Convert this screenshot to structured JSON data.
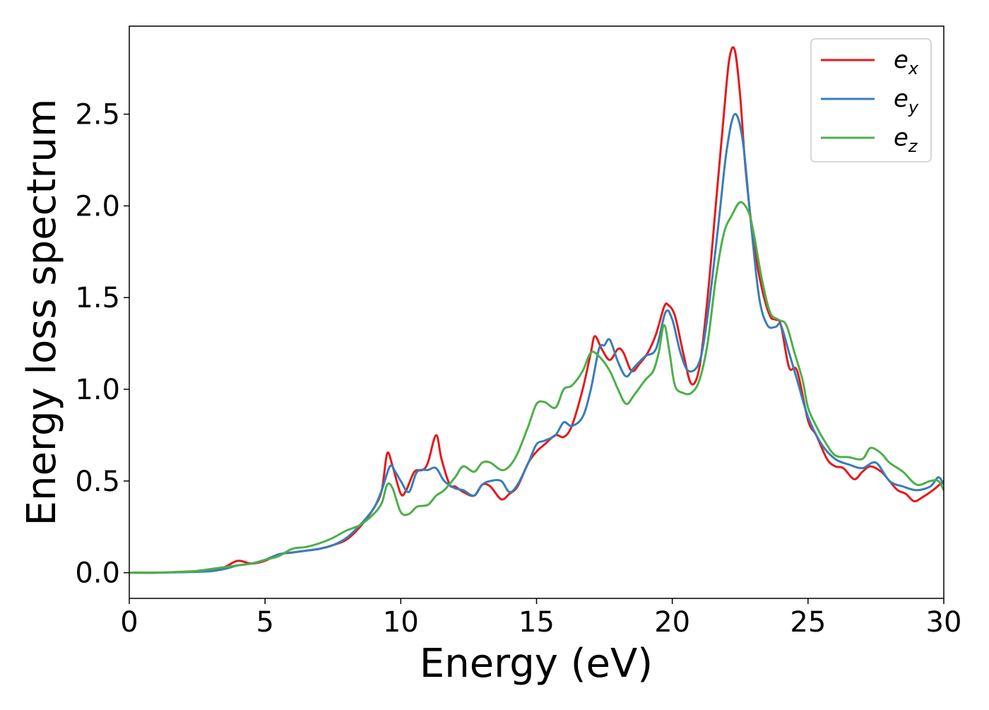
{
  "chart_data": {
    "type": "line",
    "title": "",
    "xlabel": "Energy (eV)",
    "ylabel": "Energy loss spectrum",
    "xlim": [
      0,
      30
    ],
    "ylim": [
      -0.14,
      2.98
    ],
    "xticks": [
      0,
      5,
      10,
      15,
      20,
      25,
      30
    ],
    "xtick_labels": [
      "0",
      "5",
      "10",
      "15",
      "20",
      "25",
      "30"
    ],
    "yticks": [
      0.0,
      0.5,
      1.0,
      1.5,
      2.0,
      2.5
    ],
    "ytick_labels": [
      "0.0",
      "0.5",
      "1.0",
      "1.5",
      "2.0",
      "2.5"
    ],
    "grid": false,
    "legend_position": "top-right",
    "series": [
      {
        "name": "e_x",
        "label_main": "e",
        "label_sub": "x",
        "color": "#e41a1c",
        "x": [
          0,
          1,
          2,
          3,
          3.5,
          4,
          4.5,
          5,
          5.5,
          6,
          6.5,
          7,
          7.5,
          8,
          8.5,
          9,
          9.3,
          9.5,
          9.7,
          10,
          10.2,
          10.5,
          10.8,
          11,
          11.3,
          11.5,
          11.8,
          12,
          12.3,
          12.7,
          13,
          13.3,
          13.7,
          14,
          14.3,
          14.7,
          15,
          15.3,
          15.7,
          16,
          16.3,
          16.7,
          17,
          17.15,
          17.4,
          17.7,
          18,
          18.2,
          18.5,
          18.8,
          19.1,
          19.4,
          19.7,
          19.85,
          20.1,
          20.4,
          20.7,
          21,
          21.3,
          21.6,
          21.9,
          22.1,
          22.3,
          22.5,
          22.7,
          23,
          23.3,
          23.6,
          23.8,
          24,
          24.3,
          24.6,
          25,
          25.3,
          25.7,
          26,
          26.3,
          26.7,
          27,
          27.3,
          27.7,
          28,
          28.3,
          28.6,
          28.9,
          29.2,
          29.6,
          30
        ],
        "y": [
          0,
          0,
          0.005,
          0.01,
          0.03,
          0.065,
          0.05,
          0.065,
          0.1,
          0.11,
          0.12,
          0.13,
          0.15,
          0.18,
          0.25,
          0.35,
          0.45,
          0.65,
          0.58,
          0.43,
          0.45,
          0.55,
          0.56,
          0.6,
          0.75,
          0.62,
          0.48,
          0.47,
          0.44,
          0.42,
          0.48,
          0.47,
          0.4,
          0.43,
          0.47,
          0.6,
          0.66,
          0.7,
          0.75,
          0.74,
          0.8,
          1.0,
          1.2,
          1.29,
          1.22,
          1.16,
          1.22,
          1.2,
          1.1,
          1.14,
          1.2,
          1.3,
          1.45,
          1.46,
          1.4,
          1.2,
          1.03,
          1.12,
          1.5,
          2.0,
          2.5,
          2.8,
          2.85,
          2.6,
          2.2,
          1.8,
          1.55,
          1.4,
          1.38,
          1.35,
          1.12,
          1.1,
          0.83,
          0.75,
          0.62,
          0.58,
          0.57,
          0.51,
          0.55,
          0.58,
          0.55,
          0.5,
          0.45,
          0.43,
          0.39,
          0.41,
          0.45,
          0.5
        ]
      },
      {
        "name": "e_y",
        "label_main": "e",
        "label_sub": "y",
        "color": "#377eb8",
        "x": [
          0,
          1,
          2,
          3,
          3.5,
          4,
          4.5,
          5,
          5.5,
          6,
          6.5,
          7,
          7.5,
          8,
          8.5,
          9,
          9.3,
          9.6,
          9.8,
          10,
          10.3,
          10.6,
          11,
          11.3,
          11.6,
          12,
          12.3,
          12.7,
          13,
          13.3,
          13.7,
          14,
          14.3,
          14.7,
          15,
          15.3,
          15.7,
          16,
          16.3,
          16.7,
          17,
          17.3,
          17.5,
          17.7,
          18,
          18.3,
          18.6,
          19,
          19.4,
          19.75,
          20,
          20.3,
          20.6,
          21,
          21.3,
          21.7,
          22,
          22.3,
          22.6,
          22.9,
          23.2,
          23.5,
          23.8,
          24,
          24.3,
          24.6,
          25,
          25.5,
          26,
          26.5,
          27,
          27.5,
          28,
          28.5,
          29,
          29.5,
          29.8,
          30
        ],
        "y": [
          0,
          0,
          0.003,
          0.008,
          0.02,
          0.04,
          0.05,
          0.07,
          0.1,
          0.11,
          0.12,
          0.13,
          0.15,
          0.19,
          0.26,
          0.35,
          0.45,
          0.58,
          0.55,
          0.5,
          0.44,
          0.55,
          0.56,
          0.57,
          0.5,
          0.46,
          0.45,
          0.42,
          0.48,
          0.5,
          0.5,
          0.44,
          0.48,
          0.6,
          0.7,
          0.72,
          0.75,
          0.82,
          0.8,
          0.85,
          1.0,
          1.22,
          1.24,
          1.27,
          1.15,
          1.07,
          1.12,
          1.18,
          1.22,
          1.42,
          1.38,
          1.2,
          1.1,
          1.15,
          1.4,
          1.9,
          2.3,
          2.5,
          2.35,
          1.9,
          1.5,
          1.35,
          1.34,
          1.35,
          1.2,
          1.05,
          0.85,
          0.7,
          0.62,
          0.59,
          0.57,
          0.6,
          0.5,
          0.47,
          0.45,
          0.47,
          0.52,
          0.48
        ]
      },
      {
        "name": "e_z",
        "label_main": "e",
        "label_sub": "z",
        "color": "#4daf4a",
        "x": [
          0,
          1,
          2,
          2.5,
          3,
          3.5,
          4,
          4.5,
          5,
          5.5,
          6,
          6.5,
          7,
          7.5,
          8,
          8.5,
          9,
          9.3,
          9.5,
          9.7,
          10,
          10.3,
          10.6,
          11,
          11.3,
          11.6,
          12,
          12.3,
          12.7,
          13,
          13.3,
          13.7,
          14,
          14.3,
          14.7,
          15,
          15.3,
          15.7,
          16,
          16.3,
          16.7,
          17,
          17.3,
          17.7,
          18,
          18.3,
          18.6,
          19,
          19.3,
          19.5,
          19.7,
          19.9,
          20.1,
          20.4,
          20.7,
          21,
          21.3,
          21.6,
          21.9,
          22.2,
          22.5,
          22.8,
          23,
          23.3,
          23.6,
          23.9,
          24.2,
          24.5,
          24.8,
          25,
          25.3,
          25.6,
          26,
          26.5,
          27,
          27.3,
          27.7,
          28,
          28.5,
          29,
          29.5,
          29.8,
          30
        ],
        "y": [
          0,
          0,
          0.006,
          0.01,
          0.02,
          0.03,
          0.04,
          0.05,
          0.07,
          0.09,
          0.13,
          0.14,
          0.16,
          0.19,
          0.23,
          0.26,
          0.32,
          0.38,
          0.48,
          0.46,
          0.33,
          0.32,
          0.36,
          0.37,
          0.42,
          0.45,
          0.52,
          0.58,
          0.55,
          0.6,
          0.6,
          0.56,
          0.58,
          0.65,
          0.8,
          0.92,
          0.93,
          0.9,
          1.0,
          1.02,
          1.1,
          1.2,
          1.18,
          1.1,
          1.0,
          0.92,
          0.97,
          1.05,
          1.1,
          1.2,
          1.35,
          1.2,
          1.02,
          0.98,
          0.98,
          1.05,
          1.25,
          1.6,
          1.85,
          1.95,
          2.02,
          1.97,
          1.85,
          1.6,
          1.42,
          1.38,
          1.35,
          1.2,
          1.05,
          0.9,
          0.8,
          0.72,
          0.64,
          0.63,
          0.62,
          0.68,
          0.65,
          0.6,
          0.55,
          0.48,
          0.5,
          0.5,
          0.45
        ]
      }
    ]
  }
}
